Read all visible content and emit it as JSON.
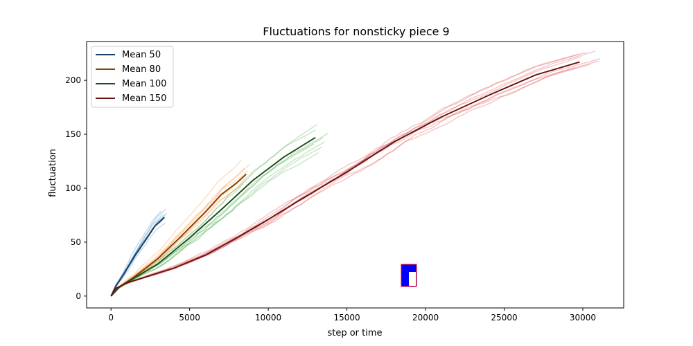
{
  "chart_data": {
    "type": "line",
    "title": "Fluctuations for nonsticky piece 9",
    "xlabel": "step or time",
    "ylabel": "fluctuation",
    "xlim": [
      -1550,
      32600
    ],
    "ylim": [
      -11,
      236
    ],
    "xticks": [
      0,
      5000,
      10000,
      15000,
      20000,
      25000,
      30000
    ],
    "yticks": [
      0,
      50,
      100,
      150,
      200
    ],
    "legend_position": "top-left",
    "grid": false,
    "series": [
      {
        "name": "Mean 50",
        "color": "#1a3f66",
        "x": [
          0,
          300,
          800,
          1500,
          2200,
          2800,
          3400
        ],
        "y": [
          0,
          9,
          20,
          37,
          52,
          65,
          73
        ],
        "runs": {
          "color": "#1f77b4",
          "endpoints": [
            [
              3200,
              79
            ],
            [
              3300,
              76
            ],
            [
              3350,
              72
            ],
            [
              3450,
              68
            ],
            [
              3500,
              81
            ],
            [
              3400,
              75
            ],
            [
              3250,
              70
            ],
            [
              3550,
              77
            ]
          ]
        }
      },
      {
        "name": "Mean 80",
        "color": "#8a4200",
        "x": [
          0,
          500,
          1500,
          3000,
          4500,
          6000,
          7000,
          8000,
          8600
        ],
        "y": [
          0,
          8,
          18,
          35,
          56,
          78,
          94,
          105,
          113
        ],
        "runs": {
          "color": "#ff7f0e",
          "endpoints": [
            [
              8300,
              126
            ],
            [
              8500,
              119
            ],
            [
              8600,
              108
            ],
            [
              8700,
              116
            ],
            [
              8400,
              104
            ],
            [
              8800,
              122
            ],
            [
              8550,
              112
            ]
          ]
        }
      },
      {
        "name": "Mean 100",
        "color": "#1e4d1e",
        "x": [
          0,
          500,
          1500,
          3000,
          5000,
          7000,
          9000,
          11000,
          13000
        ],
        "y": [
          0,
          8,
          17,
          30,
          54,
          80,
          107,
          129,
          147
        ],
        "runs": {
          "color": "#2ca02c",
          "endpoints": [
            [
              13100,
              159
            ],
            [
              13500,
              147
            ],
            [
              13800,
              151
            ],
            [
              13400,
              138
            ],
            [
              13000,
              154
            ],
            [
              13600,
              143
            ],
            [
              13200,
              133
            ],
            [
              12900,
              141
            ]
          ]
        }
      },
      {
        "name": "Mean 150",
        "color": "#6b1414",
        "x": [
          0,
          300,
          1000,
          2500,
          4000,
          6000,
          8000,
          10000,
          12000,
          15000,
          18000,
          21000,
          24000,
          27000,
          29800
        ],
        "y": [
          0,
          7,
          12,
          19,
          26,
          38,
          54,
          71,
          89,
          115,
          143,
          166,
          186,
          205,
          217
        ],
        "runs": {
          "color": "#d62728",
          "endpoints": [
            [
              30200,
              226
            ],
            [
              31000,
              218
            ],
            [
              29500,
              212
            ],
            [
              30800,
              227
            ],
            [
              29900,
              222
            ],
            [
              30500,
              215
            ],
            [
              31100,
              220
            ],
            [
              29700,
              224
            ]
          ]
        }
      }
    ]
  },
  "inset": {
    "fill_color": "#0000ff",
    "border_color": "#ff0000",
    "hole_color": "#ffffff"
  }
}
